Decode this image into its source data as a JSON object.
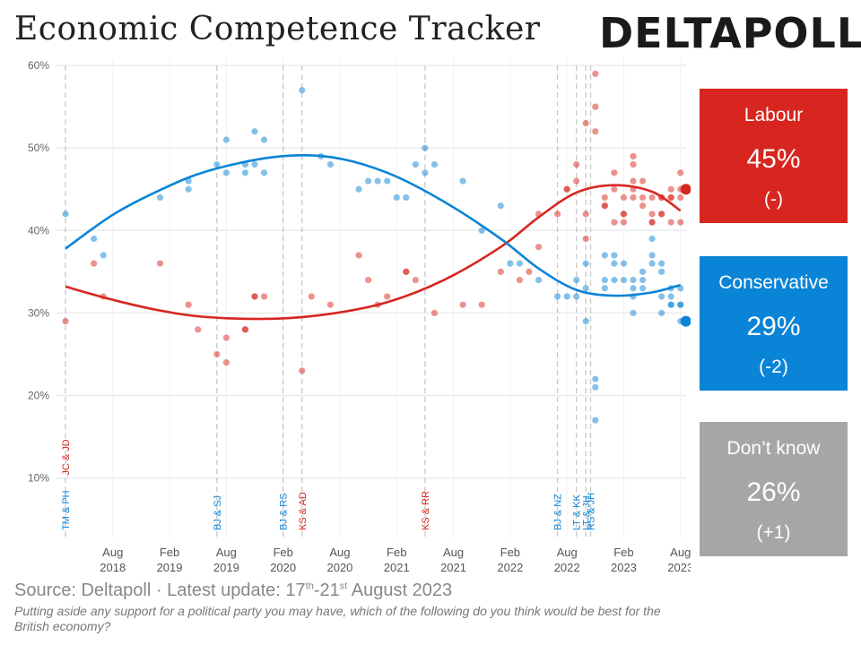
{
  "title": "Economic Competence Tracker",
  "logo": "DELTAPOLL",
  "boxes": {
    "labour": {
      "name": "Labour",
      "pct": "45%",
      "change": "(-)",
      "color": "#d7261f"
    },
    "conservative": {
      "name": "Conservative",
      "pct": "29%",
      "change": "(-2)",
      "color": "#0a84d6"
    },
    "dontknow": {
      "name": "Don’t know",
      "pct": "26%",
      "change": "(+1)",
      "color": "#a6a6a6"
    }
  },
  "source": {
    "prefix": "Source: Deltapoll · Latest update: 17",
    "sup1": "th",
    "mid": "-21",
    "sup2": "st",
    "suffix": " August 2023"
  },
  "question": "Putting aside any support for a political party you may have, which of the following do you think would be best for the British economy?",
  "chart_data": {
    "type": "scatter",
    "x_range": [
      "2018-03",
      "2023-09"
    ],
    "ylim": [
      5,
      60
    ],
    "y_ticks": [
      "10%",
      "20%",
      "30%",
      "40%",
      "50%",
      "60%"
    ],
    "x_tick_labels": [
      {
        "month": "Aug",
        "year": "2018"
      },
      {
        "month": "Feb",
        "year": "2019"
      },
      {
        "month": "Aug",
        "year": "2019"
      },
      {
        "month": "Feb",
        "year": "2020"
      },
      {
        "month": "Aug",
        "year": "2020"
      },
      {
        "month": "Feb",
        "year": "2021"
      },
      {
        "month": "Aug",
        "year": "2021"
      },
      {
        "month": "Feb",
        "year": "2022"
      },
      {
        "month": "Aug",
        "year": "2022"
      },
      {
        "month": "Feb",
        "year": "2023"
      },
      {
        "month": "Aug",
        "year": "2023"
      }
    ],
    "events": [
      {
        "date": "2018-03",
        "labels": [
          {
            "text": "JC & JD",
            "party": "lab"
          },
          {
            "text": "TM & PH",
            "party": "con"
          }
        ]
      },
      {
        "date": "2019-07",
        "labels": [
          {
            "text": "BJ & SJ",
            "party": "con"
          }
        ]
      },
      {
        "date": "2020-02",
        "labels": [
          {
            "text": "BJ & RS",
            "party": "con"
          }
        ]
      },
      {
        "date": "2020-04",
        "labels": [
          {
            "text": "KS & AD",
            "party": "lab"
          }
        ]
      },
      {
        "date": "2021-05",
        "labels": [
          {
            "text": "KS & RR",
            "party": "lab"
          }
        ]
      },
      {
        "date": "2022-07",
        "labels": [
          {
            "text": "BJ & NZ",
            "party": "con"
          }
        ]
      },
      {
        "date": "2022-09",
        "labels": [
          {
            "text": "LT & KK",
            "party": "con"
          }
        ]
      },
      {
        "date": "2022-10",
        "labels": [
          {
            "text": "LT & JH",
            "party": "con"
          }
        ]
      },
      {
        "date": "2022-10.5",
        "labels": [
          {
            "text": "RS & JH",
            "party": "con"
          }
        ]
      }
    ],
    "series": [
      {
        "name": "Labour",
        "color": "#d7261f",
        "points": [
          [
            "2018-03",
            29
          ],
          [
            "2018-06",
            36
          ],
          [
            "2018-07",
            32
          ],
          [
            "2019-01",
            36
          ],
          [
            "2019-04",
            31
          ],
          [
            "2019-05",
            28
          ],
          [
            "2019-07",
            25
          ],
          [
            "2019-08",
            27
          ],
          [
            "2019-08",
            24
          ],
          [
            "2019-10",
            28
          ],
          [
            "2019-10",
            28
          ],
          [
            "2019-11",
            32
          ],
          [
            "2019-11",
            32
          ],
          [
            "2019-12",
            32
          ],
          [
            "2020-04",
            23
          ],
          [
            "2020-05",
            32
          ],
          [
            "2020-07",
            31
          ],
          [
            "2020-10",
            37
          ],
          [
            "2020-11",
            34
          ],
          [
            "2020-12",
            31
          ],
          [
            "2021-01",
            32
          ],
          [
            "2021-03",
            35
          ],
          [
            "2021-03",
            35
          ],
          [
            "2021-04",
            34
          ],
          [
            "2021-06",
            30
          ],
          [
            "2021-09",
            31
          ],
          [
            "2021-11",
            31
          ],
          [
            "2022-01",
            35
          ],
          [
            "2022-03",
            34
          ],
          [
            "2022-04",
            35
          ],
          [
            "2022-05",
            42
          ],
          [
            "2022-05",
            38
          ],
          [
            "2022-07",
            42
          ],
          [
            "2022-08",
            45
          ],
          [
            "2022-08",
            45
          ],
          [
            "2022-09",
            46
          ],
          [
            "2022-09",
            48
          ],
          [
            "2022-10",
            42
          ],
          [
            "2022-10",
            39
          ],
          [
            "2022-10",
            53
          ],
          [
            "2022-11",
            52
          ],
          [
            "2022-11",
            59
          ],
          [
            "2022-11",
            55
          ],
          [
            "2022-12",
            44
          ],
          [
            "2022-12",
            43
          ],
          [
            "2022-12",
            43
          ],
          [
            "2023-01",
            41
          ],
          [
            "2023-01",
            47
          ],
          [
            "2023-01",
            45
          ],
          [
            "2023-02",
            42
          ],
          [
            "2023-02",
            42
          ],
          [
            "2023-02",
            41
          ],
          [
            "2023-02",
            44
          ],
          [
            "2023-03",
            49
          ],
          [
            "2023-03",
            48
          ],
          [
            "2023-03",
            46
          ],
          [
            "2023-03",
            45
          ],
          [
            "2023-03",
            44
          ],
          [
            "2023-04",
            46
          ],
          [
            "2023-04",
            44
          ],
          [
            "2023-04",
            43
          ],
          [
            "2023-05",
            44
          ],
          [
            "2023-05",
            42
          ],
          [
            "2023-05",
            41
          ],
          [
            "2023-05",
            41
          ],
          [
            "2023-06",
            42
          ],
          [
            "2023-06",
            44
          ],
          [
            "2023-06",
            44
          ],
          [
            "2023-06",
            42
          ],
          [
            "2023-07",
            45
          ],
          [
            "2023-07",
            44
          ],
          [
            "2023-07",
            44
          ],
          [
            "2023-07",
            41
          ],
          [
            "2023-08",
            47
          ],
          [
            "2023-08",
            45
          ],
          [
            "2023-08",
            44
          ],
          [
            "2023-08",
            41
          ]
        ],
        "trend": [
          [
            "2018-03",
            33.2
          ],
          [
            "2018-08",
            31.6
          ],
          [
            "2019-01",
            30.3
          ],
          [
            "2019-06",
            29.5
          ],
          [
            "2020-01",
            29.3
          ],
          [
            "2020-07",
            29.9
          ],
          [
            "2021-01",
            31.3
          ],
          [
            "2021-07",
            34.0
          ],
          [
            "2022-01",
            38.0
          ],
          [
            "2022-05",
            41.6
          ],
          [
            "2022-09",
            44.6
          ],
          [
            "2023-01",
            45.5
          ],
          [
            "2023-05",
            44.7
          ],
          [
            "2023-08",
            42.4
          ]
        ],
        "latest": [
          "2023-08",
          45
        ]
      },
      {
        "name": "Conservative",
        "color": "#0a84d6",
        "points": [
          [
            "2018-03",
            42
          ],
          [
            "2018-06",
            39
          ],
          [
            "2018-07",
            37
          ],
          [
            "2019-01",
            44
          ],
          [
            "2019-04",
            45
          ],
          [
            "2019-04",
            46
          ],
          [
            "2019-07",
            48
          ],
          [
            "2019-08",
            51
          ],
          [
            "2019-08",
            47
          ],
          [
            "2019-10",
            47
          ],
          [
            "2019-10",
            48
          ],
          [
            "2019-11",
            52
          ],
          [
            "2019-11",
            48
          ],
          [
            "2019-12",
            51
          ],
          [
            "2019-12",
            47
          ],
          [
            "2020-04",
            57
          ],
          [
            "2020-06",
            49
          ],
          [
            "2020-07",
            48
          ],
          [
            "2020-10",
            45
          ],
          [
            "2020-11",
            46
          ],
          [
            "2020-12",
            46
          ],
          [
            "2021-01",
            46
          ],
          [
            "2021-02",
            44
          ],
          [
            "2021-03",
            44
          ],
          [
            "2021-04",
            48
          ],
          [
            "2021-05",
            47
          ],
          [
            "2021-05",
            50
          ],
          [
            "2021-06",
            48
          ],
          [
            "2021-09",
            46
          ],
          [
            "2021-11",
            40
          ],
          [
            "2022-01",
            43
          ],
          [
            "2022-02",
            36
          ],
          [
            "2022-03",
            36
          ],
          [
            "2022-05",
            34
          ],
          [
            "2022-07",
            32
          ],
          [
            "2022-08",
            32
          ],
          [
            "2022-09",
            34
          ],
          [
            "2022-09",
            32
          ],
          [
            "2022-10",
            36
          ],
          [
            "2022-10",
            33
          ],
          [
            "2022-10",
            29
          ],
          [
            "2022-11",
            22
          ],
          [
            "2022-11",
            17
          ],
          [
            "2022-11",
            21
          ],
          [
            "2022-12",
            37
          ],
          [
            "2022-12",
            34
          ],
          [
            "2022-12",
            33
          ],
          [
            "2023-01",
            34
          ],
          [
            "2023-01",
            36
          ],
          [
            "2023-01",
            37
          ],
          [
            "2023-02",
            36
          ],
          [
            "2023-02",
            34
          ],
          [
            "2023-03",
            32
          ],
          [
            "2023-03",
            33
          ],
          [
            "2023-03",
            34
          ],
          [
            "2023-03",
            30
          ],
          [
            "2023-04",
            35
          ],
          [
            "2023-04",
            34
          ],
          [
            "2023-04",
            33
          ],
          [
            "2023-05",
            39
          ],
          [
            "2023-05",
            37
          ],
          [
            "2023-05",
            36
          ],
          [
            "2023-06",
            36
          ],
          [
            "2023-06",
            35
          ],
          [
            "2023-06",
            32
          ],
          [
            "2023-06",
            30
          ],
          [
            "2023-07",
            33
          ],
          [
            "2023-07",
            31
          ],
          [
            "2023-07",
            32
          ],
          [
            "2023-07",
            31
          ],
          [
            "2023-08",
            33
          ],
          [
            "2023-08",
            31
          ],
          [
            "2023-08",
            31
          ],
          [
            "2023-08",
            29
          ]
        ],
        "trend": [
          [
            "2018-03",
            37.8
          ],
          [
            "2018-08",
            41.9
          ],
          [
            "2019-01",
            44.9
          ],
          [
            "2019-06",
            47.2
          ],
          [
            "2020-01",
            48.9
          ],
          [
            "2020-07",
            48.9
          ],
          [
            "2021-01",
            47.0
          ],
          [
            "2021-07",
            43.5
          ],
          [
            "2022-01",
            39.0
          ],
          [
            "2022-05",
            35.4
          ],
          [
            "2022-09",
            32.8
          ],
          [
            "2023-01",
            32.1
          ],
          [
            "2023-05",
            32.5
          ],
          [
            "2023-08",
            33.4
          ]
        ],
        "latest": [
          "2023-08",
          29
        ]
      }
    ]
  }
}
